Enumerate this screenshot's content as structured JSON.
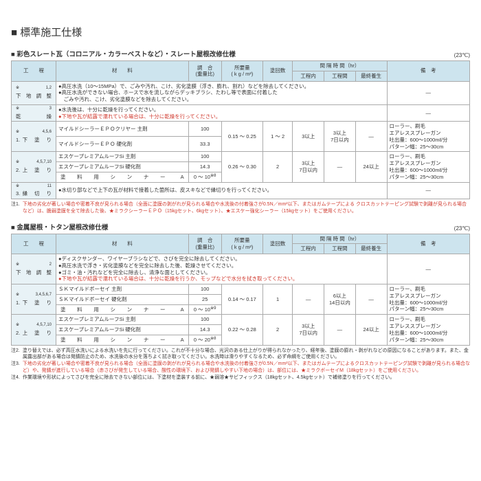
{
  "title": "■ 標準施工仕様",
  "temp_note": "(23℃)",
  "headers": {
    "stage": "工　　程",
    "material": "材　　料",
    "ratio": "調　合\n(重量比)",
    "required": "所要量\n( k g / m²)",
    "count": "塗回数",
    "interval": "間 隔 時 間（hr）",
    "int_in": "工程内",
    "int_between": "工程間",
    "int_cure": "最終養生",
    "remarks": "備　考"
  },
  "table1": {
    "title": "■ 彩色スレート瓦（コロニアル・カラーベストなど）・スレート屋根改修仕様",
    "rows": {
      "base_prep": {
        "stage": "下 地 調 整",
        "sup": "※1,2",
        "lines": [
          "●高圧水洗（10～15MPa）で、ごみや汚れ、こけ、劣化塗膜（浮き、膨れ、割れ）などを除去してください。",
          "●高圧水洗ができない場合、ホースで水を流しながらデッキブラシ、たわし等で表面に付着した",
          "　ごみや汚れ、こけ、劣化塗膜などを除去してください。"
        ],
        "remarks": "—"
      },
      "dry": {
        "stage": "乾　　燥",
        "sup": "※3",
        "lines": [
          "●水洗後は、十分に乾燥を行ってください。",
          "●下地や瓦が結露で濡れている場合は、十分に乾燥を行ってください。"
        ],
        "remarks": "—"
      },
      "primer": {
        "stage": "1. 下　塗　り",
        "sup": "※4,5,6",
        "mat1": "マイルドシーラーＥＰＯクリヤー 主剤",
        "ratio1": "100",
        "mat2": "マイルドシーラーＥＰＯ 硬化剤",
        "ratio2": "33.3",
        "req": "0.15 ～ 0.25",
        "count": "1 ～ 2",
        "int_in": "3以上",
        "int_between": "3以上\n7日以内",
        "int_cure": "—",
        "remarks": "ローラー、刷毛\nエアレススプレーガン\n吐出量：600～1000mℓ/分\nパターン幅：25～30cm"
      },
      "top": {
        "stage": "2. 上　塗　り",
        "sup": "※4,5,7,10",
        "mat1": "エスケープレミアムルーフSi 主剤",
        "ratio1": "100",
        "mat2": "エスケープレミアムルーフSi 硬化剤",
        "ratio2": "14.3",
        "mat3": "塗 料 用 シ ン ナ ー　A",
        "ratio3": "0 ～ 10",
        "ratio3_sup": "※8",
        "req": "0.26 ～ 0.30",
        "count": "2",
        "int_in": "3以上\n7日以内",
        "int_between": "—",
        "int_cure": "24以上",
        "remarks": "ローラー、刷毛\nエアレススプレーガン\n吐出量：600～1000mℓ/分\nパターン幅：25～30cm"
      },
      "edge": {
        "stage": "3. 縁　切　り",
        "sup": "※11",
        "line": "●水切り部などで上下の瓦が材料で接着した箇所は、皮スキなどで縁切りを行ってください。",
        "remarks": "—"
      }
    },
    "note": {
      "label": "注1.",
      "text_black": "下地の劣化が著しい場合や密着不良が見られる場合（全面に塗膜の剥がれが見られる場合や水洗後の付着強さが0.5N／mm²以下、またはガムテープによる",
      "text_red": "クロスカットテーピング試験で剥離が見られる場合など）は、脆弱塗膜を全て除去した後、★ミラクシーラーＥＰＯ（15kgセット、6kgセット）、★エスケー強化シーラー（15kgセット）をご使用ください。"
    }
  },
  "table2": {
    "title": "■ 金属屋根・トタン屋根改修仕様",
    "rows": {
      "base_prep": {
        "stage": "下 地 調 整",
        "sup": "※2",
        "lines": [
          "●ディスクサンダー、ワイヤーブラシなどで、さびを完全に除去してください。",
          "●高圧水洗で浮き・劣化塗膜などを完全に除去した後、乾燥させてください。",
          "●ゴミ・油・汚れなどを完全に除去し、清浄な面としてください。",
          "●下地や瓦が結露で濡れている場合は、十分に乾燥を行うか、モップなどで水分を拭き取ってください。"
        ],
        "remarks": "—"
      },
      "primer": {
        "stage": "1. 下　塗　り",
        "sup": "※3,4,5,6,7",
        "mat1": "ＳＫマイルドボーセイ 主剤",
        "ratio1": "100",
        "mat2": "ＳＫマイルドボーセイ 硬化剤",
        "ratio2": "25",
        "mat3": "塗 料 用 シ ン ナ ー　A",
        "ratio3": "0 ～ 10",
        "ratio3_sup": "※9",
        "req": "0.14 ～ 0.17",
        "count": "1",
        "int_in": "—",
        "int_between": "6以上\n14日以内",
        "int_cure": "—",
        "remarks": "ローラー、刷毛\nエアレススプレーガン\n吐出量：600～1000mℓ/分\nパターン幅：25～30cm"
      },
      "top": {
        "stage": "2. 上　塗　り",
        "sup": "※4,5,7,10",
        "mat1": "エスケープレミアムルーフSi 主剤",
        "ratio1": "100",
        "mat2": "エスケープレミアムルーフSi 硬化剤",
        "ratio2": "14.3",
        "mat3": "塗 料 用 シ ン ナ ー　A",
        "ratio3": "0 ～ 20",
        "ratio3_sup": "※8",
        "req": "0.22 ～ 0.28",
        "count": "2",
        "int_in": "3以上\n7日以内",
        "int_between": "—",
        "int_cure": "24以上",
        "remarks": "ローラー、刷毛\nエアレススプレーガン\n吐出量：600～1000mℓ/分\nパターン幅：25～30cm"
      }
    },
    "notes": [
      {
        "label": "注2.",
        "red": false,
        "text": "塗り替えでは、必ず高圧水洗いによる水洗いを先に行ってください。これが不十分な場合、光沢のある仕上がりが得られなかったり、経年後、塗膜の膨れ・剥がれなどの原因になることがあります。また、金属露出部がある場合は発錆防止のため、水洗後の水分を落ちよく拭き取ってください。水洗時は滑りやすくなるため、必ず命綱をご使用ください。"
      },
      {
        "label": "注3.",
        "red": true,
        "text": "下地の劣化が著しい場合や密着不良が見られる場合（全面に塗膜の剥がれが見られる場合や水洗後の付着強さが0.5N／mm²以下、またはガムテープによるクロスカットテーピング試験で剥離が見られる場合など）や、発錆が進行している場合（赤さびが発生している場合、酸性の環境下、および発錆しやすい下地の場合）は、部位には、★ミラクボーセイM（18kgセット）をご使用ください。"
      },
      {
        "label": "注4.",
        "red": false,
        "text": "作業環境や形状によってさびを完全に除去できない部位には、下塗材を塗装する前に、★弱溶★サビフィックス（18kgセット、4.5kgセット）で補修塗りを行ってください。"
      }
    ]
  }
}
